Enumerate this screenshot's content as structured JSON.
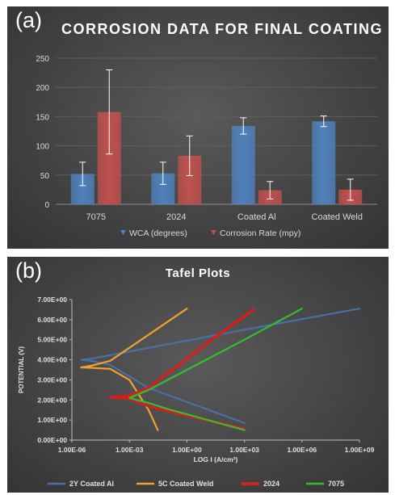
{
  "chart_data": [
    {
      "panel_label": "(a)",
      "type": "bar",
      "title": "CORROSION DATA FOR FINAL COATING",
      "categories": [
        "7075",
        "2024",
        "Coated Al",
        "Coated Weld"
      ],
      "series": [
        {
          "name": "WCA (degrees)",
          "values": [
            52,
            53,
            134,
            142
          ],
          "errors": [
            20,
            19,
            14,
            9
          ],
          "color": "#4f81bd"
        },
        {
          "name": "Corrosion Rate (mpy)",
          "values": [
            158,
            83,
            24,
            25
          ],
          "errors": [
            72,
            34,
            15,
            18
          ],
          "color": "#c0504d"
        }
      ],
      "yticks": [
        "0",
        "50",
        "100",
        "150",
        "200",
        "250"
      ],
      "ylim": [
        0,
        250
      ],
      "grid": true,
      "legend": "bottom"
    },
    {
      "panel_label": "(b)",
      "type": "line",
      "title": "Tafel Plots",
      "xlabel": "LOG I (A/cm²)",
      "ylabel": "POTENTIAL (V)",
      "xscale": "log",
      "xticks": [
        "1.00E-06",
        "1.00E-03",
        "1.00E+00",
        "1.00E+03",
        "1.00E+06",
        "1.00E+09"
      ],
      "yticks": [
        "0.00E+00",
        "1.00E+00",
        "2.00E+00",
        "3.00E+00",
        "4.00E+00",
        "5.00E+00",
        "6.00E+00",
        "7.00E+00"
      ],
      "xlim": [
        1e-06,
        1000000000.0
      ],
      "ylim": [
        0,
        7
      ],
      "grid": false,
      "legend": "bottom",
      "series": [
        {
          "name": "2Y Coated Al",
          "color": "#4a6fa5",
          "x": [
            1000000000.0,
            1000.0,
            1e-05,
            3e-06,
            1e-05,
            0.0001,
            0.01,
            1000.0
          ],
          "y": [
            6.55,
            5.5,
            4.05,
            4.0,
            3.95,
            3.75,
            2.6,
            0.85
          ]
        },
        {
          "name": "5C Coated Weld",
          "color": "#f0a030",
          "x": [
            1,
            0.001,
            0.0001,
            1e-05,
            3e-06,
            1e-05,
            0.0001,
            0.001,
            0.01,
            0.03
          ],
          "y": [
            6.55,
            4.6,
            3.95,
            3.7,
            3.62,
            3.6,
            3.55,
            3.0,
            1.5,
            0.5
          ]
        },
        {
          "name": "2024",
          "color": "#d02020",
          "x": [
            3000.0,
            100.0,
            0.01,
            0.001,
            0.0001,
            0.001,
            0.01,
            0.1,
            1000.0
          ],
          "y": [
            6.5,
            5.5,
            2.6,
            2.2,
            2.15,
            2.05,
            1.7,
            1.45,
            0.55
          ]
        },
        {
          "name": "7075",
          "color": "#30c030",
          "x": [
            1000000.0,
            1000.0,
            0.01,
            0.001,
            0.01,
            0.1,
            1000.0
          ],
          "y": [
            6.55,
            5.0,
            2.5,
            2.1,
            1.85,
            1.55,
            0.5
          ]
        }
      ]
    }
  ]
}
